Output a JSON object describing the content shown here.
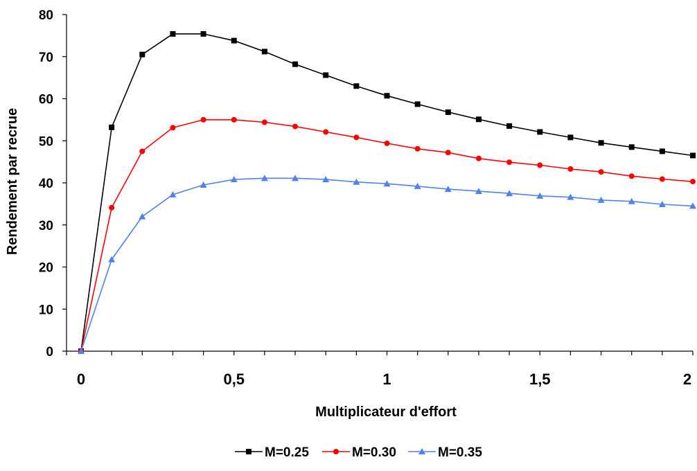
{
  "chart_data": {
    "type": "line",
    "title": "",
    "xlabel": "Multiplicateur d'effort",
    "ylabel": "Rendement par recrue",
    "xlim": [
      0,
      2
    ],
    "ylim": [
      0,
      80
    ],
    "x_ticks": [
      {
        "value": 0,
        "label": "0"
      },
      {
        "value": 0.5,
        "label": "0,5"
      },
      {
        "value": 1,
        "label": "1"
      },
      {
        "value": 1.5,
        "label": "1,5"
      },
      {
        "value": 2,
        "label": "2"
      }
    ],
    "y_ticks": [
      {
        "value": 0,
        "label": "0"
      },
      {
        "value": 10,
        "label": "10"
      },
      {
        "value": 20,
        "label": "20"
      },
      {
        "value": 30,
        "label": "30"
      },
      {
        "value": 40,
        "label": "40"
      },
      {
        "value": 50,
        "label": "50"
      },
      {
        "value": 60,
        "label": "60"
      },
      {
        "value": 70,
        "label": "70"
      },
      {
        "value": 80,
        "label": "80"
      }
    ],
    "grid": false,
    "legend_position": "bottom",
    "x": [
      0,
      0.1,
      0.2,
      0.3,
      0.4,
      0.5,
      0.6,
      0.7,
      0.8,
      0.9,
      1.0,
      1.1,
      1.2,
      1.3,
      1.4,
      1.5,
      1.6,
      1.7,
      1.8,
      1.9,
      2.0
    ],
    "series": [
      {
        "name": "M=0.25",
        "color": "#000000",
        "marker": "square",
        "values": [
          0,
          53.2,
          70.5,
          75.4,
          75.4,
          73.8,
          71.2,
          68.2,
          65.6,
          63.0,
          60.7,
          58.7,
          56.8,
          55.1,
          53.5,
          52.1,
          50.8,
          49.5,
          48.5,
          47.5,
          46.5
        ]
      },
      {
        "name": "M=0.30",
        "color": "#ff0000",
        "marker": "circle",
        "values": [
          0,
          34.1,
          47.5,
          53.1,
          55.0,
          55.0,
          54.4,
          53.4,
          52.1,
          50.8,
          49.4,
          48.1,
          47.2,
          45.8,
          44.9,
          44.2,
          43.3,
          42.6,
          41.6,
          40.9,
          40.3
        ]
      },
      {
        "name": "M=0.35",
        "color": "#4f81f0",
        "marker": "triangle",
        "values": [
          0,
          21.8,
          32.0,
          37.2,
          39.5,
          40.8,
          41.1,
          41.1,
          40.8,
          40.2,
          39.8,
          39.2,
          38.5,
          38.0,
          37.5,
          36.9,
          36.6,
          35.9,
          35.6,
          34.9,
          34.5
        ]
      }
    ]
  }
}
